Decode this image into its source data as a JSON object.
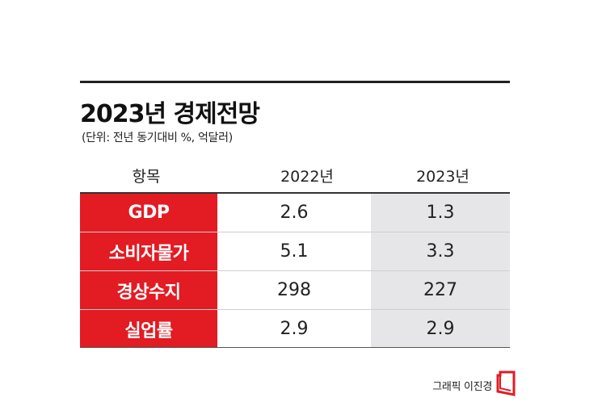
{
  "title": "2023년 경제전망",
  "subtitle": "(단위: 전년 동기대비 %, 억달러)",
  "table": {
    "headers": [
      "항목",
      "2022년",
      "2023년"
    ],
    "rows": [
      {
        "item": "GDP",
        "y2022": "2.6",
        "y2023": "1.3"
      },
      {
        "item": "소비자물가",
        "y2022": "5.1",
        "y2023": "3.3"
      },
      {
        "item": "경상수지",
        "y2022": "298",
        "y2023": "227"
      },
      {
        "item": "실업률",
        "y2022": "2.9",
        "y2023": "2.9"
      }
    ]
  },
  "credit": "그래픽 이진경",
  "colors": {
    "accent": "#e31b23",
    "shade": "#e6e6e8"
  }
}
